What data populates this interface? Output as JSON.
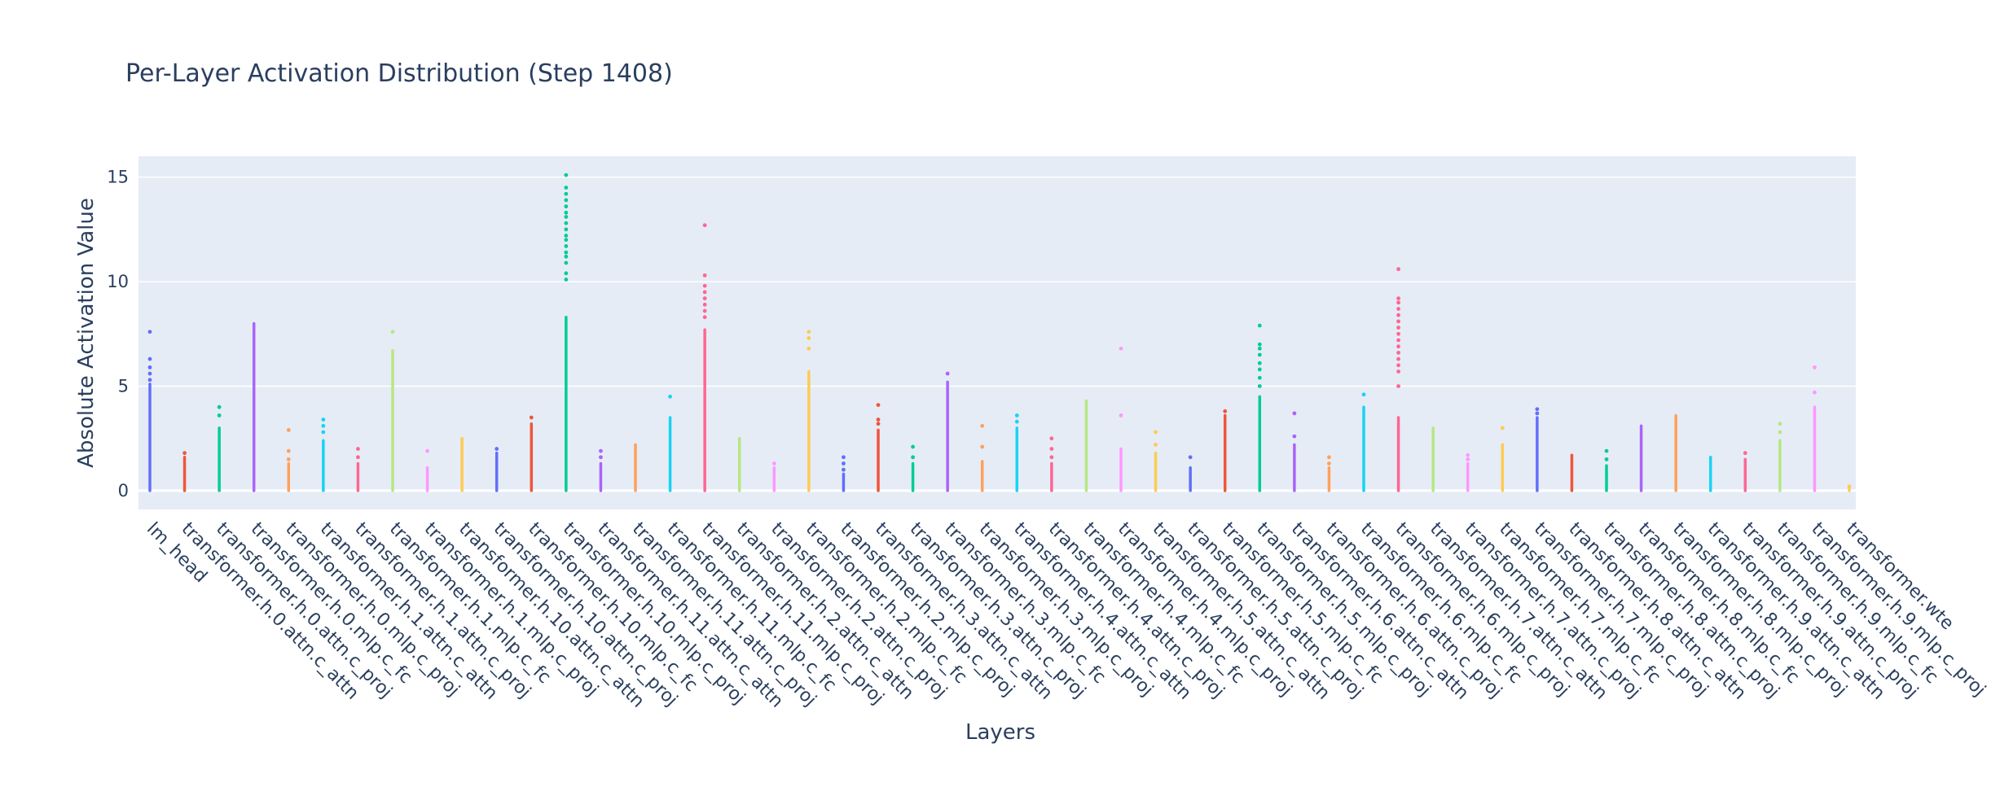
{
  "chart_data": {
    "type": "strip",
    "title": "Per-Layer Activation Distribution (Step 1408)",
    "xlabel": "Layers",
    "ylabel": "Absolute Activation Value",
    "ylim": [
      -0.9,
      16.0
    ],
    "yticks": [
      0,
      5,
      10,
      15
    ],
    "grid": true,
    "legend": "none",
    "categories": [
      "lm_head",
      "transformer.h.0.attn.c_attn",
      "transformer.h.0.attn.c_proj",
      "transformer.h.0.mlp.c_fc",
      "transformer.h.0.mlp.c_proj",
      "transformer.h.1.attn.c_attn",
      "transformer.h.1.attn.c_proj",
      "transformer.h.1.mlp.c_fc",
      "transformer.h.1.mlp.c_proj",
      "transformer.h.10.attn.c_attn",
      "transformer.h.10.attn.c_proj",
      "transformer.h.10.mlp.c_fc",
      "transformer.h.10.mlp.c_proj",
      "transformer.h.11.attn.c_attn",
      "transformer.h.11.attn.c_proj",
      "transformer.h.11.mlp.c_fc",
      "transformer.h.11.mlp.c_proj",
      "transformer.h.2.attn.c_attn",
      "transformer.h.2.attn.c_proj",
      "transformer.h.2.mlp.c_fc",
      "transformer.h.2.mlp.c_proj",
      "transformer.h.3.attn.c_attn",
      "transformer.h.3.attn.c_proj",
      "transformer.h.3.mlp.c_fc",
      "transformer.h.3.mlp.c_proj",
      "transformer.h.4.attn.c_attn",
      "transformer.h.4.attn.c_proj",
      "transformer.h.4.mlp.c_fc",
      "transformer.h.4.mlp.c_proj",
      "transformer.h.5.attn.c_attn",
      "transformer.h.5.attn.c_proj",
      "transformer.h.5.mlp.c_fc",
      "transformer.h.5.mlp.c_proj",
      "transformer.h.6.attn.c_attn",
      "transformer.h.6.attn.c_proj",
      "transformer.h.6.mlp.c_fc",
      "transformer.h.6.mlp.c_proj",
      "transformer.h.7.attn.c_attn",
      "transformer.h.7.attn.c_proj",
      "transformer.h.7.mlp.c_fc",
      "transformer.h.7.mlp.c_proj",
      "transformer.h.8.attn.c_attn",
      "transformer.h.8.attn.c_proj",
      "transformer.h.8.mlp.c_fc",
      "transformer.h.8.mlp.c_proj",
      "transformer.h.9.attn.c_attn",
      "transformer.h.9.attn.c_proj",
      "transformer.h.9.mlp.c_fc",
      "transformer.h.9.mlp.c_proj",
      "transformer.wte"
    ],
    "series": [
      {
        "color": "#636efa",
        "body_max": 5.1,
        "outliers": [
          5.3,
          5.6,
          5.9,
          6.3,
          7.6
        ]
      },
      {
        "color": "#ef553b",
        "body_max": 1.6,
        "outliers": [
          1.8
        ]
      },
      {
        "color": "#00cc96",
        "body_max": 3.0,
        "outliers": [
          3.6,
          4.0
        ]
      },
      {
        "color": "#ab63fa",
        "body_max": 8.0,
        "outliers": []
      },
      {
        "color": "#ffa15a",
        "body_max": 1.3,
        "outliers": [
          1.5,
          1.9,
          2.9
        ]
      },
      {
        "color": "#19d3f3",
        "body_max": 2.4,
        "outliers": [
          2.8,
          3.1,
          3.4
        ]
      },
      {
        "color": "#ff6692",
        "body_max": 1.3,
        "outliers": [
          1.6,
          2.0
        ]
      },
      {
        "color": "#b6e880",
        "body_max": 6.7,
        "outliers": [
          7.6
        ]
      },
      {
        "color": "#ff97ff",
        "body_max": 1.1,
        "outliers": [
          1.9
        ]
      },
      {
        "color": "#fecb52",
        "body_max": 2.5,
        "outliers": []
      },
      {
        "color": "#636efa",
        "body_max": 1.8,
        "outliers": [
          2.0
        ]
      },
      {
        "color": "#ef553b",
        "body_max": 3.2,
        "outliers": [
          3.5
        ]
      },
      {
        "color": "#00cc96",
        "body_max": 8.3,
        "outliers": [
          10.1,
          10.4,
          10.9,
          11.2,
          11.4,
          11.7,
          12.0,
          12.2,
          12.5,
          12.8,
          13.1,
          13.3,
          13.6,
          13.9,
          14.2,
          14.5,
          15.1
        ]
      },
      {
        "color": "#ab63fa",
        "body_max": 1.3,
        "outliers": [
          1.6,
          1.9
        ]
      },
      {
        "color": "#ffa15a",
        "body_max": 2.2,
        "outliers": []
      },
      {
        "color": "#19d3f3",
        "body_max": 3.5,
        "outliers": [
          4.5
        ]
      },
      {
        "color": "#ff6692",
        "body_max": 7.7,
        "outliers": [
          8.3,
          8.6,
          8.9,
          9.2,
          9.5,
          9.8,
          10.3,
          12.7
        ]
      },
      {
        "color": "#b6e880",
        "body_max": 2.5,
        "outliers": []
      },
      {
        "color": "#ff97ff",
        "body_max": 1.1,
        "outliers": [
          1.3
        ]
      },
      {
        "color": "#fecb52",
        "body_max": 5.7,
        "outliers": [
          6.8,
          7.3,
          7.6
        ]
      },
      {
        "color": "#636efa",
        "body_max": 0.8,
        "outliers": [
          1.0,
          1.3,
          1.6
        ]
      },
      {
        "color": "#ef553b",
        "body_max": 2.9,
        "outliers": [
          3.2,
          3.4,
          4.1
        ]
      },
      {
        "color": "#00cc96",
        "body_max": 1.3,
        "outliers": [
          1.6,
          2.1
        ]
      },
      {
        "color": "#ab63fa",
        "body_max": 5.2,
        "outliers": [
          5.6
        ]
      },
      {
        "color": "#ffa15a",
        "body_max": 1.4,
        "outliers": [
          2.1,
          3.1
        ]
      },
      {
        "color": "#19d3f3",
        "body_max": 3.0,
        "outliers": [
          3.3,
          3.6
        ]
      },
      {
        "color": "#ff6692",
        "body_max": 1.3,
        "outliers": [
          1.6,
          2.0,
          2.5
        ]
      },
      {
        "color": "#b6e880",
        "body_max": 4.3,
        "outliers": []
      },
      {
        "color": "#ff97ff",
        "body_max": 2.0,
        "outliers": [
          3.6,
          6.8
        ]
      },
      {
        "color": "#fecb52",
        "body_max": 1.8,
        "outliers": [
          2.2,
          2.8
        ]
      },
      {
        "color": "#636efa",
        "body_max": 1.1,
        "outliers": [
          1.6
        ]
      },
      {
        "color": "#ef553b",
        "body_max": 3.6,
        "outliers": [
          3.8
        ]
      },
      {
        "color": "#00cc96",
        "body_max": 4.5,
        "outliers": [
          5.0,
          5.4,
          5.8,
          6.1,
          6.5,
          6.8,
          7.0,
          7.9
        ]
      },
      {
        "color": "#ab63fa",
        "body_max": 2.2,
        "outliers": [
          2.6,
          3.7
        ]
      },
      {
        "color": "#ffa15a",
        "body_max": 1.1,
        "outliers": [
          1.3,
          1.6
        ]
      },
      {
        "color": "#19d3f3",
        "body_max": 4.0,
        "outliers": [
          4.6
        ]
      },
      {
        "color": "#ff6692",
        "body_max": 3.5,
        "outliers": [
          5.0,
          5.7,
          6.0,
          6.3,
          6.6,
          6.9,
          7.2,
          7.5,
          7.8,
          8.1,
          8.4,
          8.7,
          9.0,
          9.2,
          10.6
        ]
      },
      {
        "color": "#b6e880",
        "body_max": 3.0,
        "outliers": []
      },
      {
        "color": "#ff97ff",
        "body_max": 1.3,
        "outliers": [
          1.5,
          1.7
        ]
      },
      {
        "color": "#fecb52",
        "body_max": 2.2,
        "outliers": [
          3.0
        ]
      },
      {
        "color": "#636efa",
        "body_max": 3.5,
        "outliers": [
          3.7,
          3.9
        ]
      },
      {
        "color": "#ef553b",
        "body_max": 1.7,
        "outliers": []
      },
      {
        "color": "#00cc96",
        "body_max": 1.2,
        "outliers": [
          1.5,
          1.9
        ]
      },
      {
        "color": "#ab63fa",
        "body_max": 3.1,
        "outliers": []
      },
      {
        "color": "#ffa15a",
        "body_max": 3.6,
        "outliers": []
      },
      {
        "color": "#19d3f3",
        "body_max": 1.6,
        "outliers": []
      },
      {
        "color": "#ff6692",
        "body_max": 1.5,
        "outliers": [
          1.8
        ]
      },
      {
        "color": "#b6e880",
        "body_max": 2.4,
        "outliers": [
          2.8,
          3.2
        ]
      },
      {
        "color": "#ff97ff",
        "body_max": 4.0,
        "outliers": [
          4.7,
          5.9
        ]
      },
      {
        "color": "#fecb52",
        "body_max": 0.1,
        "outliers": [
          0.2
        ]
      }
    ]
  }
}
